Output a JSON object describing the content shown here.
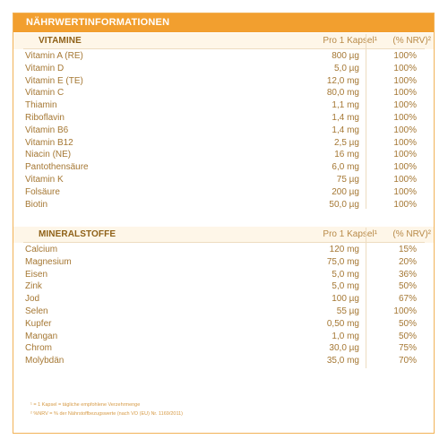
{
  "title": "NÄHRWERTINFORMATIONEN",
  "vitamins": {
    "header": "VITAMINE",
    "col_amount": "Pro 1 Kapsel¹",
    "col_nrv": "(% NRV)²",
    "rows": [
      {
        "name": "Vitamin A (RE)",
        "amount": "800 µg",
        "nrv": "100%"
      },
      {
        "name": "Vitamin D",
        "amount": "5,0 µg",
        "nrv": "100%"
      },
      {
        "name": "Vitamin E (TE)",
        "amount": "12,0 mg",
        "nrv": "100%"
      },
      {
        "name": "Vitamin C",
        "amount": "80,0 mg",
        "nrv": "100%"
      },
      {
        "name": "Thiamin",
        "amount": "1,1 mg",
        "nrv": "100%"
      },
      {
        "name": "Riboflavin",
        "amount": "1,4 mg",
        "nrv": "100%"
      },
      {
        "name": "Vitamin B6",
        "amount": "1,4 mg",
        "nrv": "100%"
      },
      {
        "name": "Vitamin B12",
        "amount": "2,5 µg",
        "nrv": "100%"
      },
      {
        "name": "Niacin (NE)",
        "amount": "16 mg",
        "nrv": "100%"
      },
      {
        "name": "Pantothensäure",
        "amount": "6,0 mg",
        "nrv": "100%"
      },
      {
        "name": "Vitamin K",
        "amount": "75 µg",
        "nrv": "100%"
      },
      {
        "name": "Folsäure",
        "amount": "200 µg",
        "nrv": "100%"
      },
      {
        "name": "Biotin",
        "amount": "50,0 µg",
        "nrv": "100%"
      }
    ]
  },
  "minerals": {
    "header": "MINERALSTOFFE",
    "col_amount": "Pro 1 Kapsel¹",
    "col_nrv": "(% NRV)²",
    "rows": [
      {
        "name": "Calcium",
        "amount": "120 mg",
        "nrv": "15%"
      },
      {
        "name": "Magnesium",
        "amount": "75,0 mg",
        "nrv": "20%"
      },
      {
        "name": "Eisen",
        "amount": "5,0 mg",
        "nrv": "36%"
      },
      {
        "name": "Zink",
        "amount": "5,0 mg",
        "nrv": "50%"
      },
      {
        "name": "Jod",
        "amount": "100 µg",
        "nrv": "67%"
      },
      {
        "name": "Selen",
        "amount": "55 µg",
        "nrv": "100%"
      },
      {
        "name": "Kupfer",
        "amount": "0,50 mg",
        "nrv": "50%"
      },
      {
        "name": "Mangan",
        "amount": "1,0 mg",
        "nrv": "50%"
      },
      {
        "name": "Chrom",
        "amount": "30,0 µg",
        "nrv": "75%"
      },
      {
        "name": "Molybdän",
        "amount": "35,0 mg",
        "nrv": "70%"
      }
    ]
  },
  "footnotes": [
    "¹ = 1 Kapsel = tägliche empfohlene Verzehrmenge",
    "² %NRV = % der Nährstoffbezugswerte (nach VO (EU) Nr. 1169/2011)"
  ],
  "colors": {
    "accent": "#f29f2f",
    "border": "#f1b257",
    "text": "#a57733",
    "header_bg": "#fef6e8"
  }
}
